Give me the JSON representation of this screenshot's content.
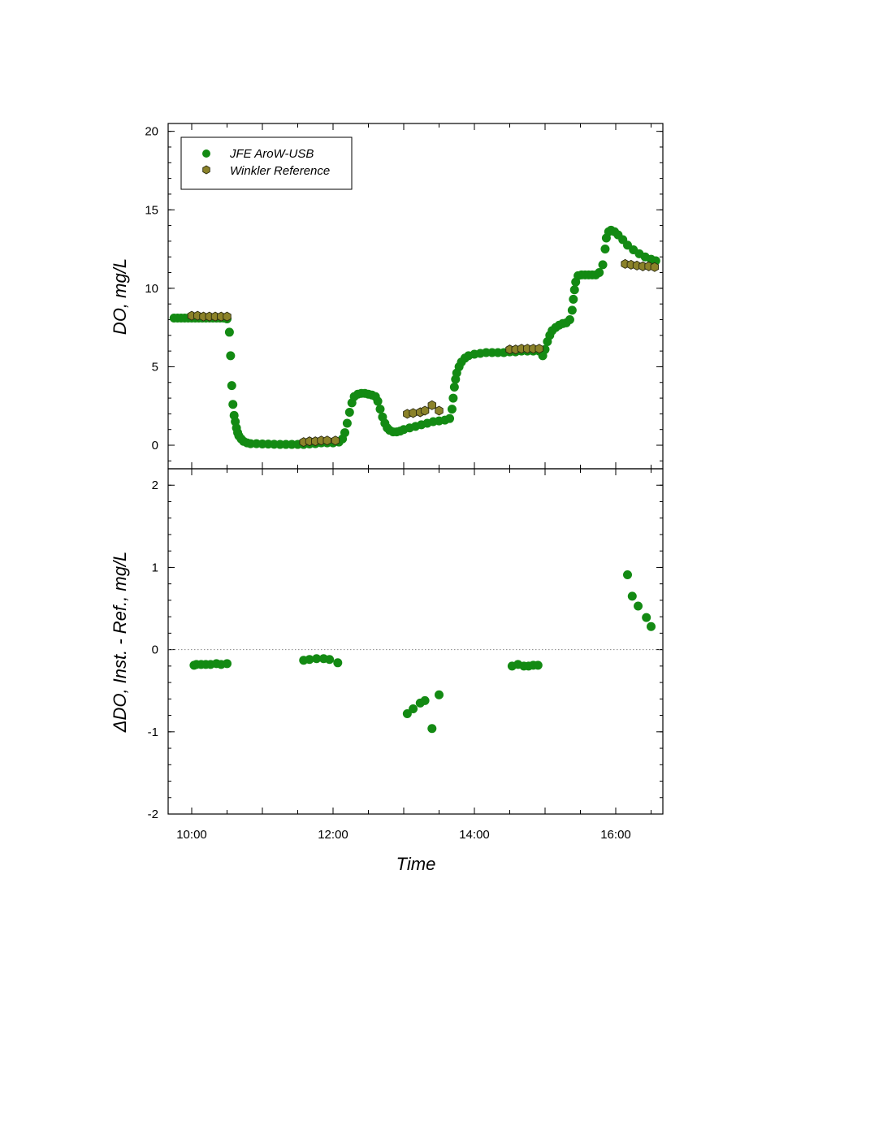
{
  "chart_data": [
    {
      "type": "scatter",
      "ylabel": "DO, mg/L",
      "ylim": [
        -1.5,
        20.5
      ],
      "yticks": [
        0,
        5,
        10,
        15,
        20
      ],
      "ytick_labels": [
        "0",
        "5",
        "10",
        "15",
        "20"
      ],
      "xlim": [
        "09:40",
        "16:40"
      ],
      "legend_position": "top-left",
      "series": [
        {
          "name": "JFE AroW-USB",
          "color": "#138a13",
          "marker": "circle",
          "points": [
            [
              "09:45",
              8.1
            ],
            [
              "09:48",
              8.1
            ],
            [
              "09:51",
              8.1
            ],
            [
              "09:54",
              8.1
            ],
            [
              "09:57",
              8.1
            ],
            [
              "10:00",
              8.1
            ],
            [
              "10:03",
              8.1
            ],
            [
              "10:06",
              8.1
            ],
            [
              "10:09",
              8.1
            ],
            [
              "10:12",
              8.1
            ],
            [
              "10:15",
              8.1
            ],
            [
              "10:18",
              8.1
            ],
            [
              "10:21",
              8.1
            ],
            [
              "10:24",
              8.1
            ],
            [
              "10:27",
              8.1
            ],
            [
              "10:30",
              8.05
            ],
            [
              "10:32",
              7.2
            ],
            [
              "10:33",
              5.7
            ],
            [
              "10:34",
              3.8
            ],
            [
              "10:35",
              2.6
            ],
            [
              "10:36",
              1.9
            ],
            [
              "10:37",
              1.5
            ],
            [
              "10:38",
              1.1
            ],
            [
              "10:39",
              0.8
            ],
            [
              "10:40",
              0.6
            ],
            [
              "10:42",
              0.4
            ],
            [
              "10:44",
              0.25
            ],
            [
              "10:47",
              0.15
            ],
            [
              "10:50",
              0.1
            ],
            [
              "10:55",
              0.1
            ],
            [
              "11:00",
              0.08
            ],
            [
              "11:05",
              0.07
            ],
            [
              "11:10",
              0.06
            ],
            [
              "11:15",
              0.05
            ],
            [
              "11:20",
              0.05
            ],
            [
              "11:25",
              0.05
            ],
            [
              "11:30",
              0.05
            ],
            [
              "11:35",
              0.05
            ],
            [
              "11:40",
              0.08
            ],
            [
              "11:45",
              0.1
            ],
            [
              "11:50",
              0.15
            ],
            [
              "11:55",
              0.15
            ],
            [
              "12:00",
              0.15
            ],
            [
              "12:05",
              0.2
            ],
            [
              "12:08",
              0.4
            ],
            [
              "12:10",
              0.8
            ],
            [
              "12:12",
              1.4
            ],
            [
              "12:14",
              2.1
            ],
            [
              "12:16",
              2.7
            ],
            [
              "12:18",
              3.1
            ],
            [
              "12:21",
              3.25
            ],
            [
              "12:24",
              3.3
            ],
            [
              "12:27",
              3.3
            ],
            [
              "12:30",
              3.25
            ],
            [
              "12:33",
              3.2
            ],
            [
              "12:36",
              3.1
            ],
            [
              "12:38",
              2.8
            ],
            [
              "12:40",
              2.3
            ],
            [
              "12:42",
              1.8
            ],
            [
              "12:44",
              1.4
            ],
            [
              "12:46",
              1.1
            ],
            [
              "12:48",
              0.95
            ],
            [
              "12:51",
              0.85
            ],
            [
              "12:54",
              0.85
            ],
            [
              "12:57",
              0.9
            ],
            [
              "13:00",
              1.0
            ],
            [
              "13:05",
              1.1
            ],
            [
              "13:10",
              1.2
            ],
            [
              "13:15",
              1.3
            ],
            [
              "13:20",
              1.4
            ],
            [
              "13:25",
              1.5
            ],
            [
              "13:30",
              1.55
            ],
            [
              "13:35",
              1.6
            ],
            [
              "13:39",
              1.7
            ],
            [
              "13:41",
              2.3
            ],
            [
              "13:42",
              3.0
            ],
            [
              "13:43",
              3.7
            ],
            [
              "13:44",
              4.2
            ],
            [
              "13:45",
              4.6
            ],
            [
              "13:47",
              5.0
            ],
            [
              "13:49",
              5.3
            ],
            [
              "13:52",
              5.55
            ],
            [
              "13:55",
              5.7
            ],
            [
              "14:00",
              5.8
            ],
            [
              "14:05",
              5.85
            ],
            [
              "14:10",
              5.9
            ],
            [
              "14:15",
              5.9
            ],
            [
              "14:20",
              5.9
            ],
            [
              "14:25",
              5.9
            ],
            [
              "14:30",
              5.95
            ],
            [
              "14:35",
              5.95
            ],
            [
              "14:40",
              6.0
            ],
            [
              "14:45",
              6.0
            ],
            [
              "14:50",
              6.0
            ],
            [
              "14:55",
              6.0
            ],
            [
              "14:58",
              5.7
            ],
            [
              "15:00",
              6.1
            ],
            [
              "15:02",
              6.6
            ],
            [
              "15:04",
              7.0
            ],
            [
              "15:06",
              7.3
            ],
            [
              "15:09",
              7.5
            ],
            [
              "15:12",
              7.65
            ],
            [
              "15:15",
              7.75
            ],
            [
              "15:18",
              7.8
            ],
            [
              "15:21",
              8.0
            ],
            [
              "15:23",
              8.6
            ],
            [
              "15:24",
              9.3
            ],
            [
              "15:25",
              9.9
            ],
            [
              "15:26",
              10.4
            ],
            [
              "15:28",
              10.8
            ],
            [
              "15:31",
              10.85
            ],
            [
              "15:34",
              10.85
            ],
            [
              "15:37",
              10.85
            ],
            [
              "15:40",
              10.85
            ],
            [
              "15:43",
              10.85
            ],
            [
              "15:46",
              11.0
            ],
            [
              "15:49",
              11.5
            ],
            [
              "15:51",
              12.5
            ],
            [
              "15:52",
              13.2
            ],
            [
              "15:54",
              13.6
            ],
            [
              "15:56",
              13.7
            ],
            [
              "15:59",
              13.6
            ],
            [
              "16:02",
              13.4
            ],
            [
              "16:06",
              13.1
            ],
            [
              "16:10",
              12.75
            ],
            [
              "16:15",
              12.45
            ],
            [
              "16:20",
              12.2
            ],
            [
              "16:25",
              12.0
            ],
            [
              "16:30",
              11.85
            ],
            [
              "16:34",
              11.75
            ]
          ]
        },
        {
          "name": "Winkler Reference",
          "color": "#8b8229",
          "marker": "hexagon",
          "points": [
            [
              "10:00",
              8.25
            ],
            [
              "10:05",
              8.25
            ],
            [
              "10:10",
              8.2
            ],
            [
              "10:15",
              8.2
            ],
            [
              "10:20",
              8.2
            ],
            [
              "10:25",
              8.2
            ],
            [
              "10:30",
              8.2
            ],
            [
              "11:35",
              0.2
            ],
            [
              "11:40",
              0.25
            ],
            [
              "11:45",
              0.25
            ],
            [
              "11:50",
              0.3
            ],
            [
              "11:55",
              0.3
            ],
            [
              "12:02",
              0.3
            ],
            [
              "13:03",
              2.0
            ],
            [
              "13:08",
              2.05
            ],
            [
              "13:14",
              2.1
            ],
            [
              "13:18",
              2.2
            ],
            [
              "13:24",
              2.55
            ],
            [
              "13:30",
              2.2
            ],
            [
              "14:30",
              6.1
            ],
            [
              "14:35",
              6.1
            ],
            [
              "14:40",
              6.15
            ],
            [
              "14:45",
              6.15
            ],
            [
              "14:50",
              6.15
            ],
            [
              "14:55",
              6.15
            ],
            [
              "16:08",
              11.55
            ],
            [
              "16:13",
              11.5
            ],
            [
              "16:18",
              11.45
            ],
            [
              "16:23",
              11.4
            ],
            [
              "16:28",
              11.4
            ],
            [
              "16:33",
              11.35
            ]
          ]
        }
      ]
    },
    {
      "type": "scatter",
      "xlabel": "Time",
      "ylabel": "ΔDO, Inst. - Ref., mg/L",
      "ylim": [
        -2,
        2.2
      ],
      "yticks": [
        -2,
        -1,
        0,
        1,
        2
      ],
      "ytick_labels": [
        "-2",
        "-1",
        "0",
        "1",
        "2"
      ],
      "xlim": [
        "09:40",
        "16:40"
      ],
      "xticks": [
        "10:00",
        "12:00",
        "14:00",
        "16:00"
      ],
      "xtick_labels": [
        "10:00",
        "12:00",
        "14:00",
        "16:00"
      ],
      "zero_line": "dotted",
      "series": [
        {
          "color": "#138a13",
          "marker": "circle",
          "points": [
            [
              "10:02",
              -0.19
            ],
            [
              "10:04",
              -0.18
            ],
            [
              "10:08",
              -0.18
            ],
            [
              "10:12",
              -0.18
            ],
            [
              "10:16",
              -0.18
            ],
            [
              "10:21",
              -0.17
            ],
            [
              "10:25",
              -0.18
            ],
            [
              "10:30",
              -0.17
            ],
            [
              "11:35",
              -0.13
            ],
            [
              "11:40",
              -0.12
            ],
            [
              "11:46",
              -0.11
            ],
            [
              "11:52",
              -0.11
            ],
            [
              "11:57",
              -0.12
            ],
            [
              "12:04",
              -0.16
            ],
            [
              "13:03",
              -0.78
            ],
            [
              "13:08",
              -0.72
            ],
            [
              "13:14",
              -0.65
            ],
            [
              "13:18",
              -0.62
            ],
            [
              "13:24",
              -0.96
            ],
            [
              "13:30",
              -0.55
            ],
            [
              "14:32",
              -0.2
            ],
            [
              "14:37",
              -0.18
            ],
            [
              "14:42",
              -0.2
            ],
            [
              "14:46",
              -0.2
            ],
            [
              "14:50",
              -0.19
            ],
            [
              "14:54",
              -0.19
            ],
            [
              "16:10",
              0.91
            ],
            [
              "16:14",
              0.65
            ],
            [
              "16:19",
              0.53
            ],
            [
              "16:26",
              0.39
            ],
            [
              "16:30",
              0.28
            ]
          ]
        }
      ]
    }
  ]
}
